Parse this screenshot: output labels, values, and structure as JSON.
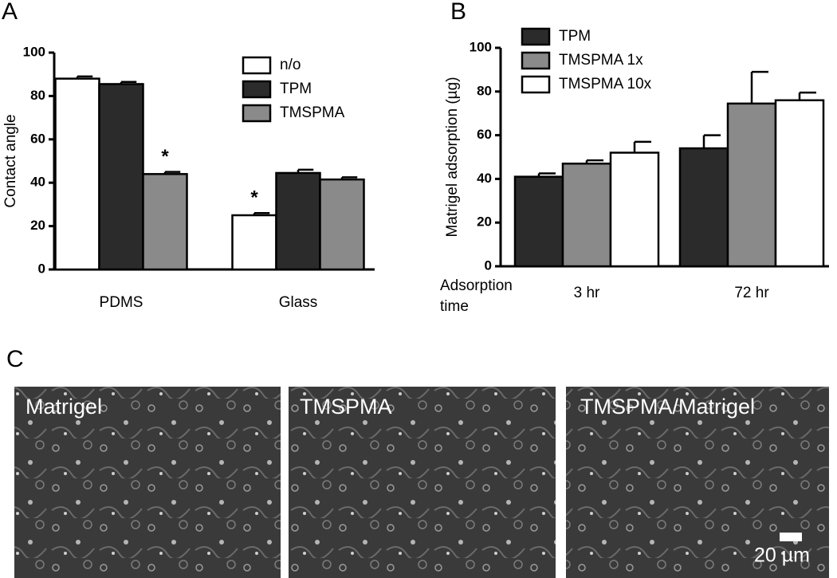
{
  "panel_labels": [
    "A",
    "B",
    "C"
  ],
  "chart_data": [
    {
      "type": "bar",
      "ylabel": "Contact angle",
      "categories": [
        "PDMS",
        "Glass"
      ],
      "series": [
        {
          "name": "n/o",
          "color": "#ffffff",
          "values": [
            88,
            25
          ],
          "errors": [
            1,
            1
          ]
        },
        {
          "name": "TPM",
          "color": "#2b2b2b",
          "values": [
            85.5,
            44.5
          ],
          "errors": [
            1,
            1.5
          ]
        },
        {
          "name": "TMSPMA",
          "color": "#8a8a8a",
          "values": [
            44,
            41.5
          ],
          "errors": [
            1,
            1
          ]
        }
      ],
      "annotations": [
        "*",
        "*"
      ],
      "ylim": [
        0,
        100
      ],
      "yticks": [
        0,
        20,
        40,
        60,
        80,
        100
      ]
    },
    {
      "type": "bar",
      "ylabel": "Matrigel adsorption (µg)",
      "xlabel": "Adsorption time",
      "categories": [
        "3 hr",
        "72 hr"
      ],
      "series": [
        {
          "name": "TPM",
          "color": "#2b2b2b",
          "values": [
            41,
            54
          ],
          "errors": [
            1.5,
            6
          ]
        },
        {
          "name": "TMSPMA 1x",
          "color": "#8a8a8a",
          "values": [
            47,
            74.5
          ],
          "errors": [
            1.5,
            14.5
          ]
        },
        {
          "name": "TMSPMA 10x",
          "color": "#ffffff",
          "values": [
            52,
            76
          ],
          "errors": [
            5,
            3.5
          ]
        }
      ],
      "ylim": [
        0,
        100
      ],
      "yticks": [
        0,
        20,
        40,
        60,
        80,
        100
      ]
    }
  ],
  "micrographs": [
    "Matrigel",
    "TMSPMA",
    "TMSPMA/Matrigel"
  ],
  "scale_bar": "20 µm"
}
